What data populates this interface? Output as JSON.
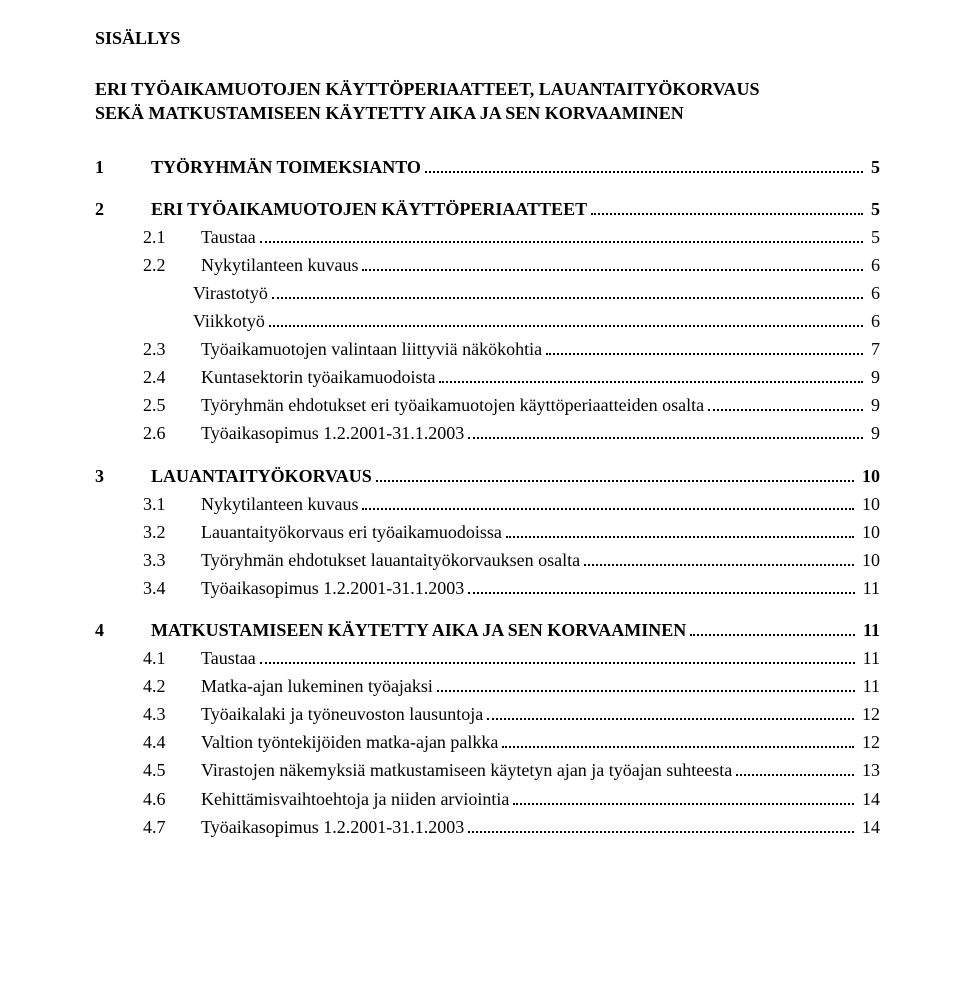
{
  "title_label": "SISÄLLYS",
  "doc_title_line1": "ERI TYÖAIKAMUOTOJEN KÄYTTÖPERIAATTEET, LAUANTAITYÖKORVAUS",
  "doc_title_line2": "SEKÄ MATKUSTAMISEEN KÄYTETTY AIKA JA SEN KORVAAMINEN",
  "sections": [
    {
      "num": "1",
      "label": "TYÖRYHMÄN TOIMEKSIANTO",
      "page": "5",
      "subs": []
    },
    {
      "num": "2",
      "label": "ERI TYÖAIKAMUOTOJEN KÄYTTÖPERIAATTEET",
      "page": "5",
      "subs": [
        {
          "num": "2.1",
          "label": "Taustaa",
          "page": "5"
        },
        {
          "num": "2.2",
          "label": "Nykytilanteen kuvaus",
          "page": "6",
          "children": [
            {
              "label": "Virastotyö",
              "page": "6"
            },
            {
              "label": "Viikkotyö",
              "page": "6"
            }
          ]
        },
        {
          "num": "2.3",
          "label": "Työaikamuotojen valintaan liittyviä näkökohtia",
          "page": "7"
        },
        {
          "num": "2.4",
          "label": "Kuntasektorin työaikamuodoista",
          "page": "9"
        },
        {
          "num": "2.5",
          "label": "Työryhmän ehdotukset eri työaikamuotojen käyttöperiaatteiden osalta",
          "page": "9"
        },
        {
          "num": "2.6",
          "label": "Työaikasopimus 1.2.2001-31.1.2003",
          "page": "9"
        }
      ]
    },
    {
      "num": "3",
      "label": "LAUANTAITYÖKORVAUS",
      "page": "10",
      "subs": [
        {
          "num": "3.1",
          "label": "Nykytilanteen kuvaus",
          "page": "10"
        },
        {
          "num": "3.2",
          "label": "Lauantaityökorvaus eri työaikamuodoissa",
          "page": "10"
        },
        {
          "num": "3.3",
          "label": "Työryhmän ehdotukset lauantaityökorvauksen osalta",
          "page": "10"
        },
        {
          "num": "3.4",
          "label": "Työaikasopimus 1.2.2001-31.1.2003",
          "page": "11"
        }
      ]
    },
    {
      "num": "4",
      "label": "MATKUSTAMISEEN KÄYTETTY AIKA JA SEN KORVAAMINEN",
      "page": "11",
      "subs": [
        {
          "num": "4.1",
          "label": "Taustaa",
          "page": "11"
        },
        {
          "num": "4.2",
          "label": "Matka-ajan lukeminen työajaksi",
          "page": "11"
        },
        {
          "num": "4.3",
          "label": "Työaikalaki ja työneuvoston lausuntoja",
          "page": "12"
        },
        {
          "num": "4.4",
          "label": "Valtion työntekijöiden matka-ajan palkka",
          "page": "12"
        },
        {
          "num": "4.5",
          "label": "Virastojen näkemyksiä matkustamiseen käytetyn ajan ja työajan suhteesta",
          "page": "13"
        },
        {
          "num": "4.6",
          "label": "Kehittämisvaihtoehtoja ja niiden arviointia",
          "page": "14"
        },
        {
          "num": "4.7",
          "label": "Työaikasopimus 1.2.2001-31.1.2003",
          "page": "14"
        }
      ]
    }
  ]
}
